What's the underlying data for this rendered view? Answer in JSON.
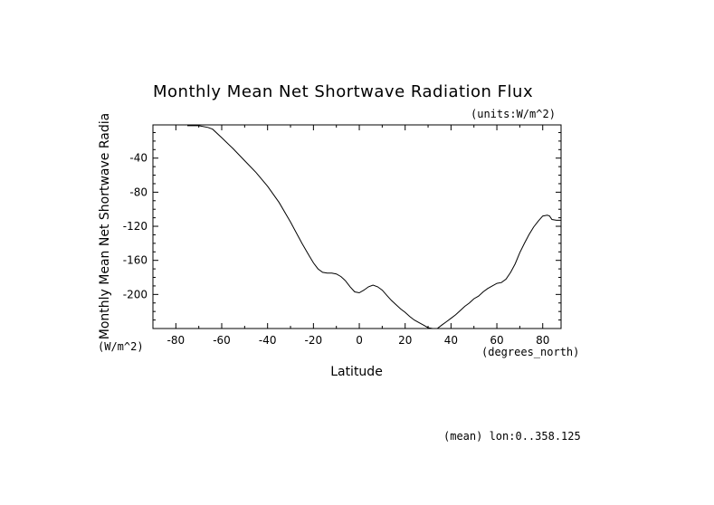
{
  "chart_data": {
    "type": "line",
    "title": "Monthly Mean Net Shortwave Radiation Flux",
    "units_label": "(units:W/m^2)",
    "xlabel": "Latitude",
    "x_units": "(degrees_north)",
    "ylabel": "Monthly Mean Net Shortwave Radia",
    "y_units": "(W/m^2)",
    "footnote": "(mean) lon:0..358.125",
    "xlim": [
      -90,
      88
    ],
    "ylim": [
      -240,
      -1
    ],
    "x_ticks": [
      -80,
      -60,
      -40,
      -20,
      0,
      20,
      40,
      60,
      80
    ],
    "x_tick_labels": [
      "-80",
      "-60",
      "-40",
      "-20",
      "0",
      "20",
      "40",
      "60",
      "80"
    ],
    "y_ticks": [
      -40,
      -80,
      -120,
      -160,
      -200
    ],
    "y_tick_labels": [
      "-40",
      "-80",
      "-120",
      "-160",
      "-200"
    ],
    "grid": false,
    "series": [
      {
        "x": [
          -75,
          -70,
          -66,
          -64,
          -60,
          -55,
          -50,
          -45,
          -40,
          -35,
          -30,
          -25,
          -22,
          -20,
          -18,
          -16,
          -14,
          -12,
          -10,
          -8,
          -6,
          -4,
          -2,
          0,
          2,
          4,
          6,
          8,
          10,
          12,
          14,
          16,
          18,
          20,
          22,
          24,
          26,
          28,
          30,
          32,
          34,
          36,
          38,
          40,
          42,
          44,
          46,
          48,
          50,
          52,
          54,
          56,
          58,
          60,
          62,
          64,
          66,
          68,
          70,
          72,
          74,
          76,
          78,
          80,
          82,
          83,
          84,
          86,
          88
        ],
        "y": [
          -2,
          -2,
          -4,
          -6,
          -16,
          -29,
          -43,
          -57,
          -73,
          -92,
          -115,
          -140,
          -154,
          -163,
          -170,
          -174,
          -175,
          -175,
          -176,
          -179,
          -184,
          -191,
          -197,
          -198,
          -195,
          -191,
          -189,
          -191,
          -195,
          -201,
          -207,
          -212,
          -217,
          -221,
          -226,
          -230,
          -233,
          -236,
          -239,
          -240,
          -240,
          -236,
          -232,
          -228,
          -224,
          -219,
          -214,
          -210,
          -205,
          -202,
          -197,
          -193,
          -190,
          -187,
          -186,
          -182,
          -174,
          -164,
          -151,
          -140,
          -130,
          -121,
          -114,
          -108,
          -107,
          -108,
          -112,
          -113,
          -113
        ]
      }
    ]
  }
}
